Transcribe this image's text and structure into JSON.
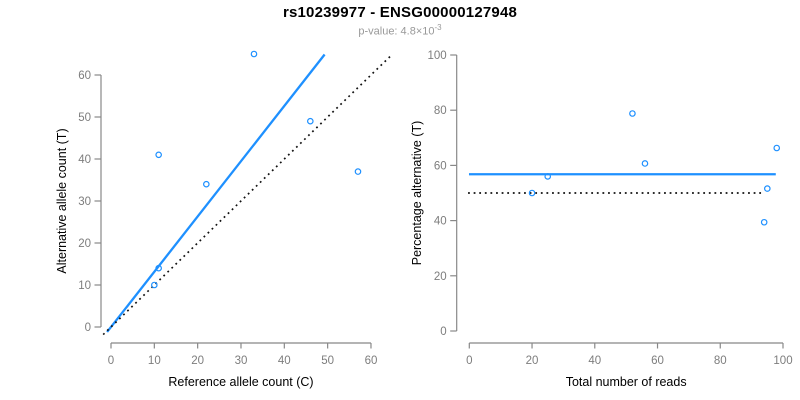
{
  "header": {
    "title": "rs10239977 - ENSG00000127948",
    "subtitle_prefix": "p-value: 4.8×10",
    "subtitle_exponent": "-3"
  },
  "colors": {
    "accent": "#1e90ff",
    "identity_line": "#111111",
    "axis": "#888888",
    "tick_label": "#7d7d7d",
    "axis_title": "#000000",
    "subtitle": "#999999"
  },
  "chart_data": [
    {
      "type": "scatter",
      "panel": "allele-counts",
      "xlabel": "Reference allele count (C)",
      "ylabel": "Alternative allele count (T)",
      "xticks": [
        0,
        10,
        20,
        30,
        40,
        50,
        60
      ],
      "yticks": [
        0,
        10,
        20,
        30,
        40,
        50,
        60
      ],
      "xlim": [
        -2.3,
        64.5
      ],
      "ylim": [
        -3,
        66
      ],
      "grid": false,
      "points": [
        [
          10,
          10
        ],
        [
          11,
          14
        ],
        [
          11,
          41
        ],
        [
          22,
          34
        ],
        [
          33,
          65
        ],
        [
          46,
          49
        ],
        [
          57,
          37
        ]
      ],
      "lines": [
        {
          "name": "fit-line",
          "slope": 1.316,
          "intercept": 0,
          "x_from": -0.9,
          "x_to": 49.3,
          "style": "solid",
          "color_key": "accent"
        },
        {
          "name": "identity-line",
          "slope": 1,
          "intercept": 0,
          "x_from": -1.8,
          "x_to": 64.4,
          "style": "dotted",
          "color_key": "identity_line"
        }
      ]
    },
    {
      "type": "scatter",
      "panel": "percentage-vs-coverage",
      "xlabel": "Total number of reads",
      "ylabel": "Percentage alternative (T)",
      "xticks": [
        0,
        20,
        40,
        60,
        80,
        100
      ],
      "yticks": [
        0,
        20,
        40,
        60,
        80,
        100
      ],
      "xlim": [
        -4,
        104
      ],
      "ylim": [
        -4.3,
        104
      ],
      "grid": false,
      "points": [
        [
          20,
          50
        ],
        [
          25,
          56
        ],
        [
          52,
          78.8
        ],
        [
          56,
          60.7
        ],
        [
          94,
          39.4
        ],
        [
          95,
          51.6
        ],
        [
          98,
          66.3
        ]
      ],
      "lines": [
        {
          "name": "fit-line",
          "y": 56.8,
          "x_from": -0.1,
          "x_to": 97.7,
          "style": "solid",
          "color_key": "accent"
        },
        {
          "name": "identity-line",
          "y": 50,
          "x_from": -0.4,
          "x_to": 93.6,
          "style": "dotted",
          "color_key": "identity_line"
        }
      ]
    }
  ]
}
